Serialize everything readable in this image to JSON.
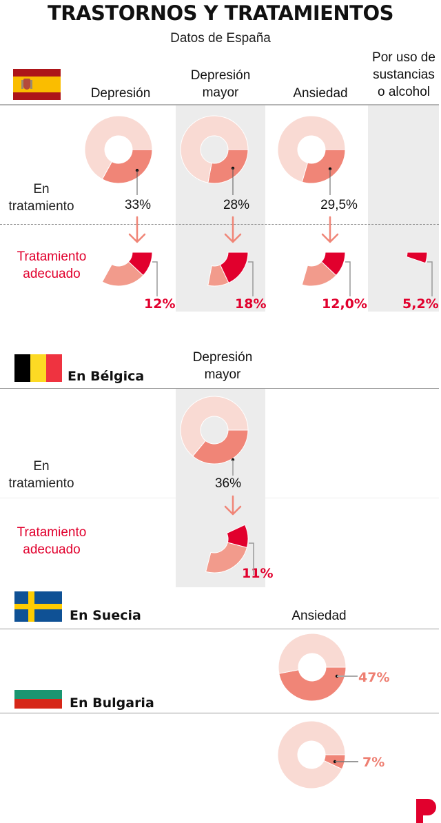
{
  "header": {
    "title": "TRASTORNOS Y TRATAMIENTOS",
    "subtitle": "Datos de España"
  },
  "colors": {
    "untreated": "#f9dad3",
    "treated": "#f08577",
    "treated_not_adequate": "#f29b8c",
    "adequate": "#e1002d",
    "band": "#ececec",
    "arrow": "#f08577",
    "logo": "#e1002d"
  },
  "row_labels": {
    "in_treatment": [
      "En",
      "tratamiento"
    ],
    "adequate": [
      "Tratamiento",
      "adecuado"
    ]
  },
  "spain": {
    "columns": [
      {
        "label": [
          "Depresión"
        ]
      },
      {
        "label": [
          "Depresión",
          "mayor"
        ]
      },
      {
        "label": [
          "Ansiedad"
        ]
      },
      {
        "label": [
          "Por uso de",
          "sustancias",
          "o alcohol"
        ]
      }
    ]
  },
  "belgium": {
    "name": "En Bélgica",
    "columns": [
      {
        "label": [
          "Depresión",
          "mayor"
        ]
      }
    ]
  },
  "sweden": {
    "name": "En Suecia",
    "columns": [
      {
        "label": [
          "Ansiedad"
        ]
      }
    ]
  },
  "bulgaria": {
    "name": "En Bulgaria"
  },
  "chart_data": [
    {
      "type": "pie",
      "title": "España - En tratamiento",
      "categories": [
        "Depresión",
        "Depresión mayor",
        "Ansiedad",
        "Por uso de sustancias o alcohol"
      ],
      "in_treatment": [
        33,
        28,
        29.5,
        null
      ],
      "in_treatment_labels": [
        "33%",
        "28%",
        "29,5%",
        null
      ],
      "adequate_treatment": [
        12,
        18,
        12.0,
        5.2
      ],
      "adequate_treatment_labels": [
        "12%",
        "18%",
        "12,0%",
        "5,2%"
      ]
    },
    {
      "type": "pie",
      "title": "En Bélgica",
      "categories": [
        "Depresión mayor"
      ],
      "in_treatment": [
        36
      ],
      "in_treatment_labels": [
        "36%"
      ],
      "adequate_treatment": [
        11
      ],
      "adequate_treatment_labels": [
        "11%"
      ]
    },
    {
      "type": "pie",
      "title": "En Suecia",
      "categories": [
        "Ansiedad"
      ],
      "in_treatment": [
        47
      ],
      "in_treatment_labels": [
        "47%"
      ]
    },
    {
      "type": "pie",
      "title": "En Bulgaria",
      "categories": [
        "Ansiedad"
      ],
      "in_treatment": [
        7
      ],
      "in_treatment_labels": [
        "7%"
      ]
    }
  ]
}
